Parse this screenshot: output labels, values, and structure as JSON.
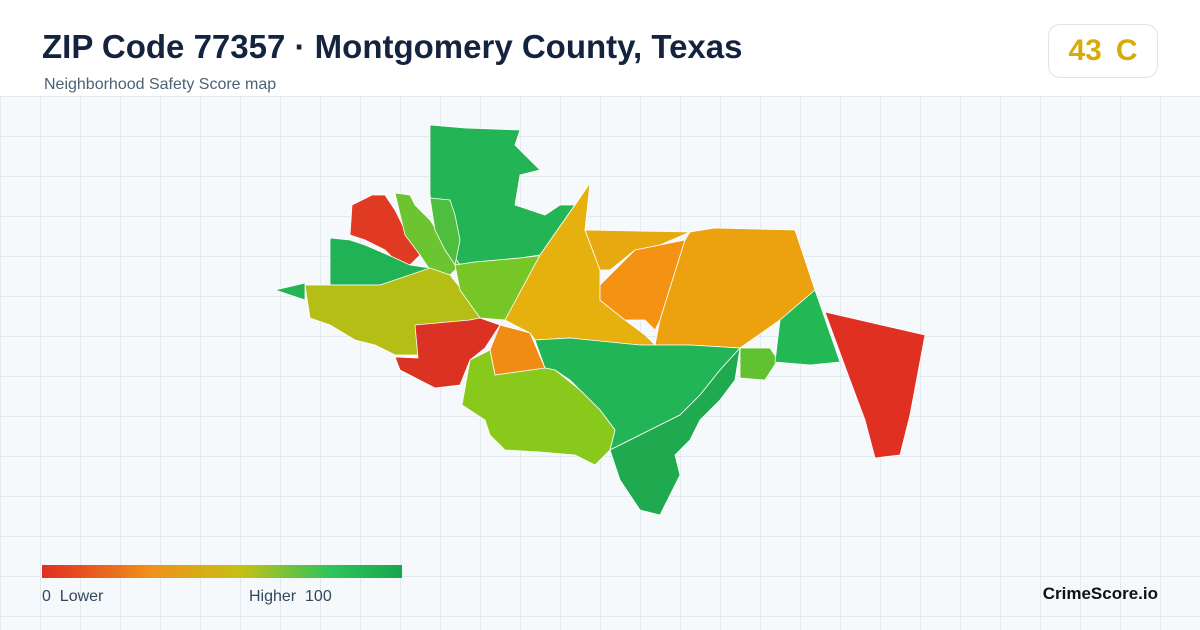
{
  "header": {
    "title": "ZIP Code 77357 · Montgomery County, Texas",
    "subtitle": "Neighborhood Safety Score map"
  },
  "score": {
    "value": 43,
    "grade": "C"
  },
  "legend": {
    "min": 0,
    "min_label": "Lower",
    "max_label": "Higher",
    "max": 100
  },
  "brand": "CrimeScore.io"
}
